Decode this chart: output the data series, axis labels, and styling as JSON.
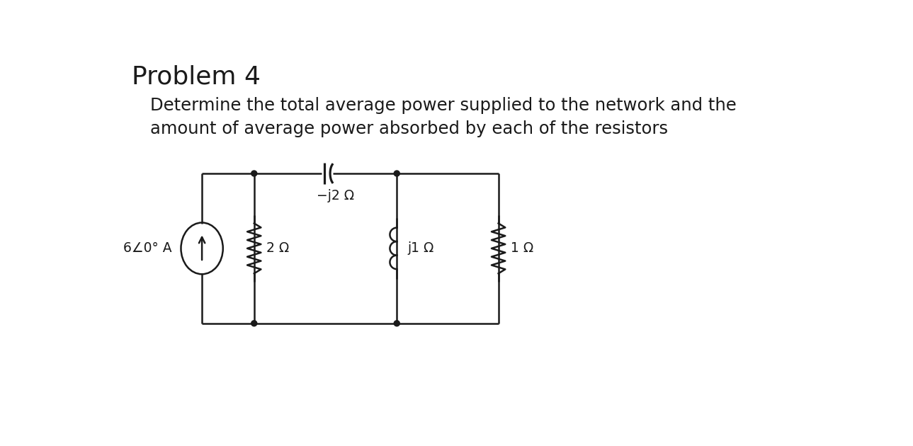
{
  "title": "Problem 4",
  "description_line1": "Determine the total average power supplied to the network and the",
  "description_line2": "amount of average power absorbed by each of the resistors",
  "bg_color": "#ffffff",
  "text_color": "#1a1a1a",
  "title_fontsize": 26,
  "desc_fontsize": 17.5,
  "circuit": {
    "current_source_label": "6∠0° A",
    "cap_label": "−j2 Ω",
    "r1_label": "2 Ω",
    "r2_label": "j1 Ω",
    "r3_label": "1 Ω"
  }
}
